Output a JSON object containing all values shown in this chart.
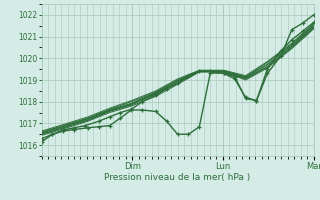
{
  "bg_color": "#d4ece5",
  "plot_bg_color": "#d4ece5",
  "grid_color": "#a8c8bb",
  "line_color": "#2d6e3a",
  "marker_color": "#2d6e3a",
  "xlabel": "Pression niveau de la mer( hPa )",
  "ylim": [
    1015.5,
    1022.5
  ],
  "yticks": [
    1016,
    1017,
    1018,
    1019,
    1020,
    1021,
    1022
  ],
  "xtick_labels": [
    "Dim",
    "Lun",
    "Mar"
  ],
  "xtick_positions": [
    0.333,
    0.667,
    1.0
  ],
  "figsize": [
    3.2,
    2.0
  ],
  "dpi": 100,
  "series": [
    {
      "x": [
        0.0,
        0.04,
        0.08,
        0.12,
        0.16,
        0.21,
        0.25,
        0.29,
        0.33,
        0.37,
        0.42,
        0.46,
        0.5,
        0.54,
        0.58,
        0.62,
        0.67,
        0.71,
        0.75,
        0.79,
        0.83,
        0.88,
        0.92,
        0.96,
        1.0
      ],
      "y": [
        1016.3,
        1016.5,
        1016.7,
        1016.8,
        1016.9,
        1017.1,
        1017.3,
        1017.5,
        1017.65,
        1018.0,
        1018.3,
        1018.6,
        1018.85,
        1019.2,
        1019.4,
        1019.4,
        1019.3,
        1019.05,
        1018.2,
        1018.05,
        1019.5,
        1020.35,
        1020.85,
        1021.25,
        1021.65
      ],
      "lw": 1.0,
      "marker": true
    },
    {
      "x": [
        0.0,
        0.08,
        0.17,
        0.25,
        0.33,
        0.42,
        0.5,
        0.58,
        0.67,
        0.75,
        0.83,
        0.92,
        1.0
      ],
      "y": [
        1016.55,
        1016.85,
        1017.2,
        1017.6,
        1017.9,
        1018.4,
        1018.95,
        1019.4,
        1019.4,
        1019.1,
        1019.7,
        1020.6,
        1021.5
      ],
      "lw": 0.7,
      "marker": false
    },
    {
      "x": [
        0.0,
        0.08,
        0.17,
        0.25,
        0.33,
        0.42,
        0.5,
        0.58,
        0.67,
        0.75,
        0.83,
        0.92,
        1.0
      ],
      "y": [
        1016.5,
        1016.8,
        1017.15,
        1017.55,
        1017.85,
        1018.35,
        1018.85,
        1019.38,
        1019.38,
        1019.05,
        1019.6,
        1020.5,
        1021.4
      ],
      "lw": 0.7,
      "marker": false
    },
    {
      "x": [
        0.0,
        0.08,
        0.17,
        0.25,
        0.33,
        0.42,
        0.5,
        0.58,
        0.67,
        0.75,
        0.83,
        0.92,
        1.0
      ],
      "y": [
        1016.6,
        1016.9,
        1017.25,
        1017.65,
        1018.0,
        1018.45,
        1019.0,
        1019.42,
        1019.42,
        1019.15,
        1019.8,
        1020.65,
        1021.55
      ],
      "lw": 0.7,
      "marker": false
    },
    {
      "x": [
        0.0,
        0.08,
        0.17,
        0.25,
        0.33,
        0.42,
        0.5,
        0.58,
        0.67,
        0.75,
        0.83,
        0.92,
        1.0
      ],
      "y": [
        1016.65,
        1016.95,
        1017.3,
        1017.7,
        1018.05,
        1018.5,
        1019.05,
        1019.45,
        1019.45,
        1019.2,
        1019.85,
        1020.7,
        1021.6
      ],
      "lw": 0.7,
      "marker": false
    },
    {
      "x": [
        0.0,
        0.08,
        0.17,
        0.25,
        0.33,
        0.42,
        0.5,
        0.58,
        0.67,
        0.75,
        0.83,
        0.92,
        1.0
      ],
      "y": [
        1016.45,
        1016.75,
        1017.1,
        1017.5,
        1017.8,
        1018.25,
        1018.8,
        1019.37,
        1019.37,
        1019.0,
        1019.55,
        1020.45,
        1021.35
      ],
      "lw": 0.7,
      "marker": false
    },
    {
      "x": [
        0.0,
        0.08,
        0.17,
        0.25,
        0.33,
        0.42,
        0.5,
        0.58,
        0.67,
        0.75,
        0.83,
        0.92,
        1.0
      ],
      "y": [
        1016.5,
        1016.8,
        1017.15,
        1017.57,
        1017.87,
        1018.37,
        1018.9,
        1019.39,
        1019.39,
        1019.07,
        1019.62,
        1020.52,
        1021.42
      ],
      "lw": 0.7,
      "marker": false
    },
    {
      "x": [
        0.0,
        0.08,
        0.17,
        0.25,
        0.33,
        0.42,
        0.5,
        0.58,
        0.67,
        0.75,
        0.83,
        0.92,
        1.0
      ],
      "y": [
        1016.58,
        1016.88,
        1017.22,
        1017.62,
        1017.93,
        1018.42,
        1018.97,
        1019.41,
        1019.41,
        1019.12,
        1019.72,
        1020.58,
        1021.48
      ],
      "lw": 0.7,
      "marker": false
    },
    {
      "x": [
        0.0,
        0.04,
        0.08,
        0.12,
        0.17,
        0.21,
        0.25,
        0.29,
        0.33,
        0.37,
        0.42,
        0.46,
        0.5,
        0.54,
        0.58,
        0.62,
        0.67,
        0.71,
        0.75,
        0.79,
        0.83,
        0.88,
        0.92,
        0.96,
        1.0
      ],
      "y": [
        1016.15,
        1016.5,
        1016.65,
        1016.72,
        1016.8,
        1016.85,
        1016.9,
        1017.25,
        1017.62,
        1017.62,
        1017.55,
        1017.1,
        1016.5,
        1016.5,
        1016.85,
        1019.32,
        1019.32,
        1019.15,
        1018.15,
        1018.05,
        1019.3,
        1020.12,
        1021.32,
        1021.62,
        1022.0
      ],
      "lw": 1.0,
      "marker": true
    }
  ]
}
